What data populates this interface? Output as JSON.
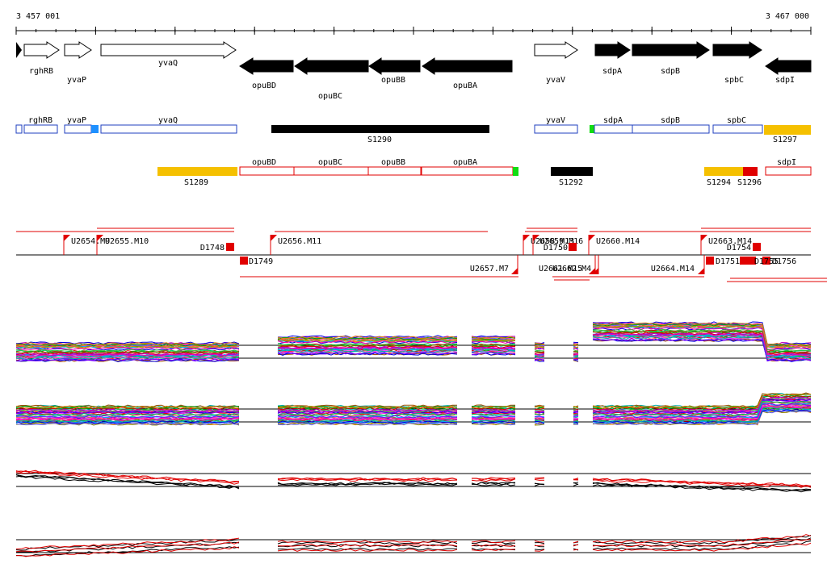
{
  "coords": {
    "start": "3 457 001",
    "end": "3 467 000"
  },
  "colors": {
    "gene_outline": "#000000",
    "plus_gene_fill": "#ffffff",
    "minus_gene_fill": "#000000",
    "blue": "#1f3fbf",
    "red": "#e00000",
    "yellow": "#f5c000",
    "green": "#11dd11",
    "cyan": "#1e90ff",
    "black": "#000000"
  },
  "genes": [
    {
      "label": "rghRB",
      "strand": "+"
    },
    {
      "label": "yvaP",
      "strand": "+"
    },
    {
      "label": "yvaQ",
      "strand": "+"
    },
    {
      "label": "opuBD",
      "strand": "-"
    },
    {
      "label": "opuBC",
      "strand": "-"
    },
    {
      "label": "opuBB",
      "strand": "-"
    },
    {
      "label": "opuBA",
      "strand": "-"
    },
    {
      "label": "yvaV",
      "strand": "+"
    },
    {
      "label": "sdpA",
      "strand": "+"
    },
    {
      "label": "sdpB",
      "strand": "+"
    },
    {
      "label": "spbC",
      "strand": "+"
    },
    {
      "label": "sdpI",
      "strand": "-"
    }
  ],
  "segments_plus": [
    {
      "label": "rghRB"
    },
    {
      "label": "yvaP"
    },
    {
      "label": "yvaQ"
    },
    {
      "label": "S1290"
    },
    {
      "label": "yvaV"
    },
    {
      "label": "sdpA"
    },
    {
      "label": "sdpB"
    },
    {
      "label": "spbC"
    },
    {
      "label": "S1297"
    }
  ],
  "segments_minus": [
    {
      "label": "S1289"
    },
    {
      "label": "opuBD"
    },
    {
      "label": "opuBC"
    },
    {
      "label": "opuBB"
    },
    {
      "label": "opuBA"
    },
    {
      "label": "S1292"
    },
    {
      "label": "S1294"
    },
    {
      "label": "S1296"
    },
    {
      "label": "sdpI"
    }
  ],
  "features": [
    {
      "label": "U2654.M9"
    },
    {
      "label": "U2655.M10"
    },
    {
      "label": "D1748"
    },
    {
      "label": "D1749"
    },
    {
      "label": "U2656.M11"
    },
    {
      "label": "U2657.M7"
    },
    {
      "label": "U2658.M13"
    },
    {
      "label": "U2659.M16"
    },
    {
      "label": "D1750"
    },
    {
      "label": "U2660.M14"
    },
    {
      "label": "U2661.M15"
    },
    {
      "label": "U2662.M4"
    },
    {
      "label": "U2663.M14"
    },
    {
      "label": "U2664.M14"
    },
    {
      "label": "D1751"
    },
    {
      "label": "D1754"
    },
    {
      "label": "D1755"
    },
    {
      "label": "D1756"
    }
  ],
  "expression_tracks": [
    {
      "name": "plus-multi"
    },
    {
      "name": "minus-multi"
    },
    {
      "name": "plus-pair"
    },
    {
      "name": "minus-pair"
    }
  ]
}
